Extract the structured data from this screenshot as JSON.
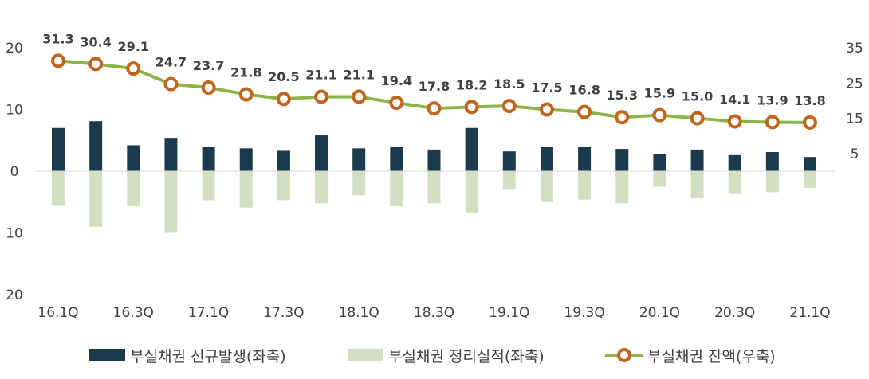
{
  "chart_data": {
    "type": "bar",
    "categories": [
      "16.1Q",
      "16.2Q",
      "16.3Q",
      "16.4Q",
      "17.1Q",
      "17.2Q",
      "17.3Q",
      "17.4Q",
      "18.1Q",
      "18.2Q",
      "18.3Q",
      "18.4Q",
      "19.1Q",
      "19.2Q",
      "19.3Q",
      "19.4Q",
      "20.1Q",
      "20.2Q",
      "20.3Q",
      "20.4Q",
      "21.1Q"
    ],
    "x_tick_labels": [
      "16.1Q",
      "16.3Q",
      "17.1Q",
      "17.3Q",
      "18.1Q",
      "18.3Q",
      "19.1Q",
      "19.3Q",
      "20.1Q",
      "20.3Q",
      "21.1Q"
    ],
    "left_axis": {
      "ylim": [
        -20,
        20
      ],
      "tick_values": [
        20,
        10,
        0,
        -10,
        -20
      ],
      "tick_labels": [
        "20",
        "10",
        "0",
        "10",
        "20"
      ]
    },
    "right_axis": {
      "ylim": [
        -35,
        35
      ],
      "tick_values": [
        35,
        25,
        15,
        5
      ],
      "tick_labels": [
        "35",
        "25",
        "15",
        "5"
      ]
    },
    "series": [
      {
        "name": "부실채권 신규발생(좌축)",
        "type": "bar",
        "axis": "left",
        "color": "#1b3a4b",
        "values": [
          7.0,
          8.1,
          4.2,
          5.4,
          3.9,
          3.7,
          3.3,
          5.8,
          3.7,
          3.9,
          3.5,
          7.0,
          3.2,
          4.0,
          3.9,
          3.6,
          2.8,
          3.5,
          2.6,
          3.1,
          2.3
        ]
      },
      {
        "name": "부실채권 정리실적(좌축)",
        "type": "bar",
        "axis": "left",
        "color": "#d3dfc1",
        "values": [
          -5.6,
          -9.0,
          -5.7,
          -10.0,
          -4.7,
          -5.9,
          -4.7,
          -5.2,
          -3.9,
          -5.7,
          -5.2,
          -6.8,
          -3.0,
          -5.0,
          -4.6,
          -5.2,
          -2.5,
          -4.4,
          -3.7,
          -3.4,
          -2.7
        ]
      },
      {
        "name": "부실채권 잔액(우축)",
        "type": "line",
        "axis": "right",
        "color": "#8ab54a",
        "marker_color": "#c0651b",
        "values": [
          31.3,
          30.4,
          29.1,
          24.7,
          23.7,
          21.8,
          20.5,
          21.1,
          21.1,
          19.4,
          17.8,
          18.2,
          18.5,
          17.5,
          16.8,
          15.3,
          15.9,
          15.0,
          14.1,
          13.9,
          13.8
        ],
        "labels": [
          "31.3",
          "30.4",
          "29.1",
          "24.7",
          "23.7",
          "21.8",
          "20.5",
          "21.1",
          "21.1",
          "19.4",
          "17.8",
          "18.2",
          "18.5",
          "17.5",
          "16.8",
          "15.3",
          "15.9",
          "15.0",
          "14.1",
          "13.9",
          "13.8"
        ]
      }
    ],
    "legend_position": "bottom",
    "grid": false
  }
}
